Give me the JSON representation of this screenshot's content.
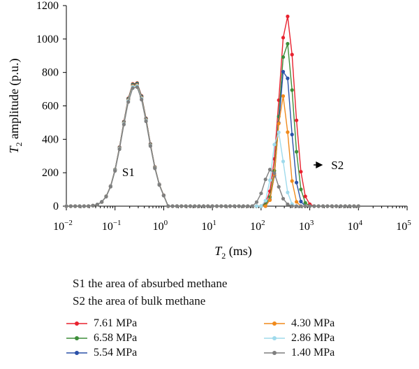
{
  "chart_data": {
    "type": "line",
    "xscale": "log",
    "xlabel_symbol": "T",
    "xlabel_sub": "2",
    "xlabel_unit": "(ms)",
    "ylabel_symbol": "T",
    "ylabel_sub": "2",
    "ylabel_text": "amplitude (p.u.)",
    "xlim": [
      0.01,
      100000
    ],
    "ylim": [
      0,
      1200
    ],
    "xtick_exponents": [
      -2,
      -1,
      0,
      1,
      2,
      3,
      4,
      5
    ],
    "xtick_base": "10",
    "yticks": [
      0,
      200,
      400,
      600,
      800,
      1000,
      1200
    ],
    "grid": false,
    "legend_position": "bottom",
    "annotations": [
      {
        "text": "S1",
        "x": 0.14,
        "y": 205
      },
      {
        "text": "S2",
        "x": 5000,
        "y": 205,
        "arrow_from": 1200
      }
    ],
    "series": [
      {
        "name": "7.61 MPa",
        "color": "#e8222f",
        "s1_peak": 745,
        "s2_peak": 1140,
        "s2_center": 340,
        "s2_width": 0.155
      },
      {
        "name": "6.58 MPa",
        "color": "#3e8e3a",
        "s1_peak": 742,
        "s2_peak": 990,
        "s2_center": 330,
        "s2_width": 0.14
      },
      {
        "name": "5.54 MPa",
        "color": "#2a51a8",
        "s1_peak": 738,
        "s2_peak": 840,
        "s2_center": 310,
        "s2_width": 0.125
      },
      {
        "name": "4.30 MPa",
        "color": "#f08a1c",
        "s1_peak": 733,
        "s2_peak": 660,
        "s2_center": 280,
        "s2_width": 0.11
      },
      {
        "name": "2.86 MPa",
        "color": "#9fdaec",
        "s1_peak": 728,
        "s2_peak": 450,
        "s2_center": 220,
        "s2_width": 0.11
      },
      {
        "name": "1.40 MPa",
        "color": "#7f7f7f",
        "s1_peak": 720,
        "s2_peak": 222,
        "s2_center": 160,
        "s2_width": 0.14
      }
    ]
  },
  "notes": {
    "line1": "S1 the area of absurbed methane",
    "line2": "S2 the area of bulk methane"
  }
}
